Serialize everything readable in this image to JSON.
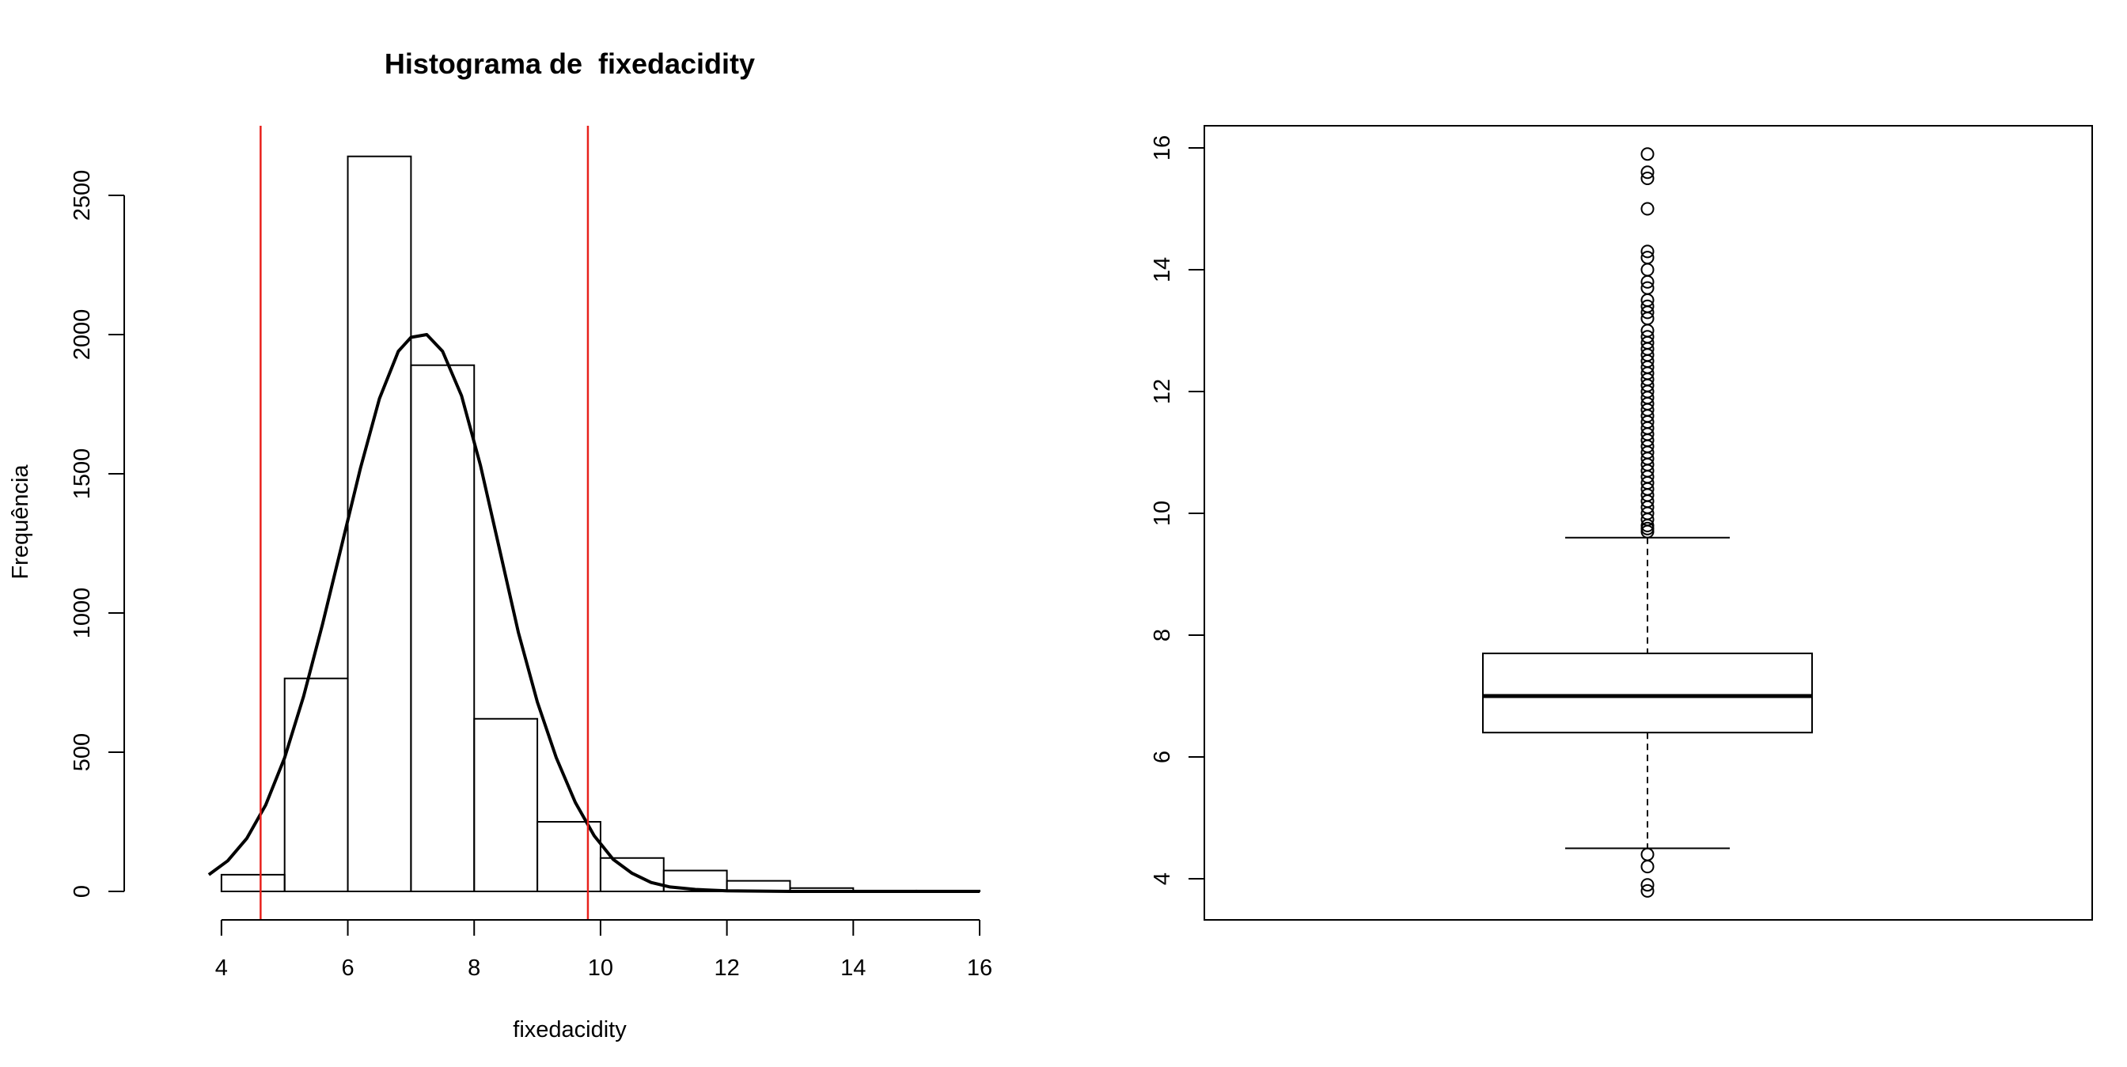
{
  "chart_data": [
    {
      "type": "histogram",
      "title": "Histograma de  fixedacidity",
      "xlabel": "fixedacidity",
      "ylabel": "Frequência",
      "xlim": [
        3,
        16
      ],
      "ylim": [
        0,
        2500
      ],
      "xticks": [
        4,
        6,
        8,
        10,
        12,
        14,
        16
      ],
      "yticks": [
        0,
        500,
        1000,
        1500,
        2000,
        2500
      ],
      "bins": [
        {
          "from": 3,
          "to": 4,
          "count": 0
        },
        {
          "from": 4,
          "to": 5,
          "count": 60
        },
        {
          "from": 5,
          "to": 6,
          "count": 765
        },
        {
          "from": 6,
          "to": 7,
          "count": 2640
        },
        {
          "from": 7,
          "to": 8,
          "count": 1890
        },
        {
          "from": 8,
          "to": 9,
          "count": 620
        },
        {
          "from": 9,
          "to": 10,
          "count": 250
        },
        {
          "from": 10,
          "to": 11,
          "count": 120
        },
        {
          "from": 11,
          "to": 12,
          "count": 75
        },
        {
          "from": 12,
          "to": 13,
          "count": 38
        },
        {
          "from": 13,
          "to": 14,
          "count": 12
        },
        {
          "from": 14,
          "to": 15,
          "count": 3
        },
        {
          "from": 15,
          "to": 16,
          "count": 3
        }
      ],
      "curve": {
        "x": [
          3.8,
          4.1,
          4.4,
          4.7,
          5.0,
          5.3,
          5.6,
          5.9,
          6.2,
          6.5,
          6.8,
          7.0,
          7.25,
          7.5,
          7.8,
          8.1,
          8.4,
          8.7,
          9.0,
          9.3,
          9.6,
          9.9,
          10.2,
          10.5,
          10.8,
          11.1,
          11.5,
          12.0,
          13.0,
          14.0,
          15.0,
          16.0
        ],
        "y": [
          60,
          110,
          190,
          310,
          480,
          700,
          960,
          1240,
          1520,
          1770,
          1940,
          1990,
          2000,
          1940,
          1780,
          1530,
          1230,
          930,
          680,
          480,
          320,
          200,
          115,
          65,
          32,
          16,
          7,
          2,
          0,
          0,
          0,
          0
        ]
      },
      "vlines": [
        4.62,
        9.8
      ],
      "vline_color": "#e8211c"
    },
    {
      "type": "boxplot",
      "ylim": [
        3.3,
        16.4
      ],
      "yticks": [
        4,
        6,
        8,
        10,
        12,
        14,
        16
      ],
      "q1": 6.4,
      "median": 7.0,
      "q3": 7.7,
      "whisker_low": 4.5,
      "whisker_high": 9.6,
      "outliers": [
        3.8,
        3.9,
        4.2,
        4.4,
        9.7,
        9.75,
        9.8,
        9.9,
        10.0,
        10.1,
        10.2,
        10.3,
        10.4,
        10.5,
        10.6,
        10.7,
        10.8,
        10.9,
        11.0,
        11.1,
        11.2,
        11.3,
        11.4,
        11.5,
        11.6,
        11.7,
        11.8,
        11.9,
        12.0,
        12.1,
        12.2,
        12.3,
        12.4,
        12.5,
        12.6,
        12.7,
        12.8,
        12.9,
        13.0,
        13.2,
        13.3,
        13.4,
        13.5,
        13.7,
        13.8,
        14.0,
        14.2,
        14.3,
        15.0,
        15.5,
        15.6,
        15.9
      ]
    }
  ]
}
